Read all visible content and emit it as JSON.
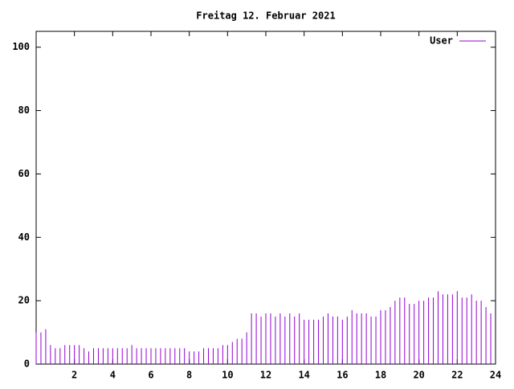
{
  "chart_data": {
    "type": "impulses",
    "title": "Freitag 12. Februar 2021",
    "x": [
      0,
      0.25,
      0.5,
      0.75,
      1,
      1.25,
      1.5,
      1.75,
      2,
      2.25,
      2.5,
      2.75,
      3,
      3.25,
      3.5,
      3.75,
      4,
      4.25,
      4.5,
      4.75,
      5,
      5.25,
      5.5,
      5.75,
      6,
      6.25,
      6.5,
      6.75,
      7,
      7.25,
      7.5,
      7.75,
      8,
      8.25,
      8.5,
      8.75,
      9,
      9.25,
      9.5,
      9.75,
      10,
      10.25,
      10.5,
      10.75,
      11,
      11.25,
      11.5,
      11.75,
      12,
      12.25,
      12.5,
      12.75,
      13,
      13.25,
      13.5,
      13.75,
      14,
      14.25,
      14.5,
      14.75,
      15,
      15.25,
      15.5,
      15.75,
      16,
      16.25,
      16.5,
      16.75,
      17,
      17.25,
      17.5,
      17.75,
      18,
      18.25,
      18.5,
      18.75,
      19,
      19.25,
      19.5,
      19.75,
      20,
      20.25,
      20.5,
      20.75,
      21,
      21.25,
      21.5,
      21.75,
      22,
      22.25,
      22.5,
      22.75,
      23,
      23.25,
      23.5,
      23.75
    ],
    "series": [
      {
        "name": "User",
        "color": "#9400d3",
        "values": [
          10,
          10,
          11,
          6,
          5,
          5,
          6,
          6,
          6,
          6,
          5,
          4,
          5,
          5,
          5,
          5,
          5,
          5,
          5,
          5,
          6,
          5,
          5,
          5,
          5,
          5,
          5,
          5,
          5,
          5,
          5,
          5,
          4,
          4,
          4,
          5,
          5,
          5,
          5,
          6,
          6,
          7,
          8,
          8,
          10,
          16,
          16,
          15,
          16,
          16,
          15,
          16,
          15,
          16,
          15,
          16,
          14,
          14,
          14,
          14,
          15,
          16,
          15,
          15,
          14,
          15,
          17,
          16,
          16,
          16,
          15,
          15,
          17,
          17,
          18,
          20,
          21,
          21,
          19,
          19,
          20,
          20,
          21,
          21,
          23,
          22,
          22,
          22,
          23,
          21,
          21,
          22,
          20,
          20,
          18,
          16
        ]
      }
    ],
    "xlim": [
      0,
      24
    ],
    "xticks": [
      2,
      4,
      6,
      8,
      10,
      12,
      14,
      16,
      18,
      20,
      22,
      24
    ],
    "ylim": [
      0,
      105
    ],
    "yticks": [
      0,
      20,
      40,
      60,
      80,
      100
    ],
    "legend": "top-right"
  }
}
